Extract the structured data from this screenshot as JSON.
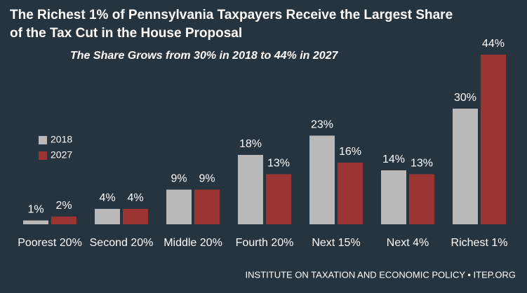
{
  "chart_data": {
    "type": "bar",
    "title": [
      "The Richest 1% of Pennsylvania Taxpayers Receive the Largest Share",
      "of the Tax Cut in the House Proposal"
    ],
    "subtitle": "The Share Grows from 30% in 2018 to 44% in 2027",
    "categories": [
      "Poorest 20%",
      "Second 20%",
      "Middle 20%",
      "Fourth 20%",
      "Next 15%",
      "Next 4%",
      "Richest 1%"
    ],
    "series": [
      {
        "name": "2018",
        "color": "#b9b9b9",
        "values": [
          1,
          4,
          9,
          18,
          23,
          14,
          30
        ],
        "value_labels": [
          "1%",
          "4%",
          "9%",
          "18%",
          "23%",
          "14%",
          "30%"
        ]
      },
      {
        "name": "2027",
        "color": "#9c3434",
        "values": [
          2,
          4,
          9,
          13,
          16,
          13,
          44
        ],
        "value_labels": [
          "2%",
          "4%",
          "9%",
          "13%",
          "16%",
          "13%",
          "44%"
        ]
      }
    ],
    "source": "INSTITUTE ON TAXATION AND ECONOMIC POLICY • ITEP.ORG"
  }
}
